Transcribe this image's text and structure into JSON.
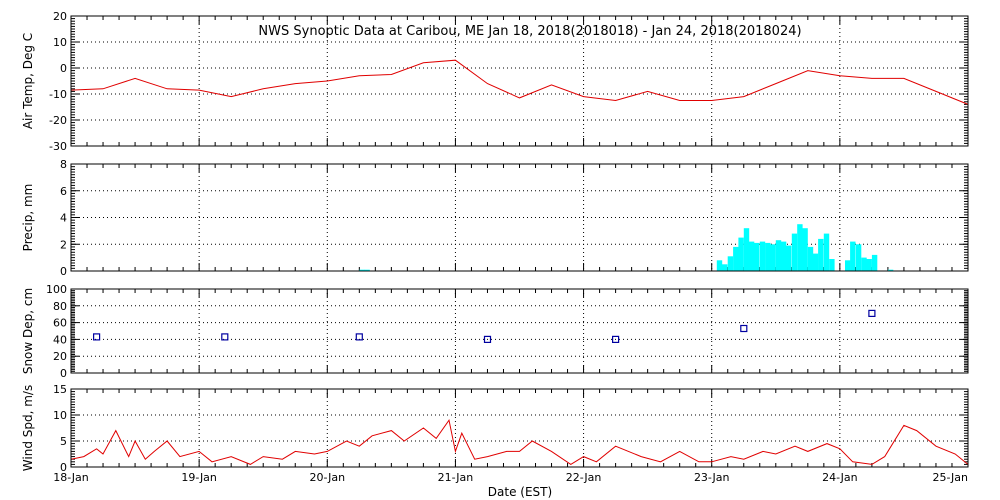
{
  "title": "NWS Synoptic Data at Caribou, ME   Jan 18, 2018(2018018) - Jan 24, 2018(2018024)",
  "xlabel": "Date (EST)",
  "x_tick_labels": [
    "18-Jan",
    "19-Jan",
    "20-Jan",
    "21-Jan",
    "22-Jan",
    "23-Jan",
    "24-Jan",
    "25-Jan"
  ],
  "chart_data": [
    {
      "name": "air-temp",
      "type": "line",
      "ylabel": "Air Temp, Deg C",
      "ylim": [
        -30,
        20
      ],
      "yticks": [
        -30,
        -20,
        -10,
        0,
        10,
        20
      ],
      "xlim": [
        0,
        7
      ],
      "grid": true,
      "color": "#e00000",
      "x": [
        0,
        0.25,
        0.5,
        0.75,
        1.0,
        1.25,
        1.5,
        1.75,
        2.0,
        2.25,
        2.5,
        2.75,
        3.0,
        3.25,
        3.5,
        3.75,
        4.0,
        4.25,
        4.5,
        4.75,
        5.0,
        5.25,
        5.5,
        5.75,
        6.0,
        6.25,
        6.5,
        6.75,
        7.0
      ],
      "y": [
        -8.5,
        -8,
        -4,
        -8,
        -8.5,
        -11,
        -8,
        -6,
        -5,
        -3,
        -2.5,
        2,
        3,
        -6,
        -11.5,
        -6.5,
        -11,
        -12.5,
        -9,
        -12.5,
        -12.5,
        -11,
        -6,
        -1,
        -3,
        -4,
        -4,
        -9,
        -14
      ]
    },
    {
      "name": "precip",
      "type": "bar",
      "ylabel": "Precip, mm",
      "ylim": [
        0,
        8
      ],
      "yticks": [
        0,
        2,
        4,
        6,
        8
      ],
      "xlim": [
        0,
        7
      ],
      "bin_width": 0.042,
      "grid": true,
      "color": "#00ffff",
      "x": [
        2.25,
        2.29,
        5.04,
        5.08,
        5.125,
        5.167,
        5.208,
        5.25,
        5.29,
        5.33,
        5.375,
        5.417,
        5.458,
        5.5,
        5.54,
        5.58,
        5.625,
        5.667,
        5.708,
        5.75,
        5.79,
        5.83,
        5.875,
        5.917,
        6.04,
        6.08,
        6.125,
        6.167,
        6.208,
        6.25,
        6.375
      ],
      "values": [
        0.1,
        0.1,
        0.8,
        0.5,
        1.1,
        1.8,
        2.5,
        3.2,
        2.2,
        2.1,
        2.2,
        2.1,
        2.0,
        2.3,
        2.2,
        1.9,
        2.8,
        3.5,
        3.2,
        1.8,
        1.3,
        2.4,
        2.8,
        0.9,
        0.8,
        2.2,
        2.0,
        1.0,
        0.9,
        1.2,
        0.1
      ]
    },
    {
      "name": "snow-depth",
      "type": "scatter",
      "ylabel": "Snow Dep, cm",
      "ylim": [
        0,
        100
      ],
      "yticks": [
        0,
        20,
        40,
        60,
        80,
        100
      ],
      "xlim": [
        0,
        7
      ],
      "grid": true,
      "color": "#0000a0",
      "x": [
        0.2,
        1.2,
        2.25,
        3.25,
        4.25,
        5.25,
        6.25
      ],
      "y": [
        43,
        43,
        43,
        40,
        40,
        53,
        71
      ]
    },
    {
      "name": "wind-speed",
      "type": "line",
      "ylabel": "Wind Spd, m/s",
      "ylim": [
        0,
        15
      ],
      "yticks": [
        0,
        5,
        10,
        15
      ],
      "xlim": [
        0,
        7
      ],
      "grid": true,
      "color": "#e00000",
      "x": [
        0,
        0.1,
        0.2,
        0.25,
        0.35,
        0.45,
        0.5,
        0.58,
        0.65,
        0.75,
        0.85,
        1.0,
        1.1,
        1.25,
        1.4,
        1.5,
        1.65,
        1.75,
        1.9,
        2.0,
        2.15,
        2.25,
        2.35,
        2.5,
        2.6,
        2.75,
        2.85,
        2.95,
        3.0,
        3.05,
        3.15,
        3.25,
        3.4,
        3.5,
        3.6,
        3.75,
        3.9,
        4.0,
        4.1,
        4.25,
        4.45,
        4.6,
        4.75,
        4.9,
        5.0,
        5.15,
        5.25,
        5.4,
        5.5,
        5.65,
        5.75,
        5.9,
        6.0,
        6.1,
        6.25,
        6.35,
        6.5,
        6.6,
        6.75,
        6.9,
        7.0
      ],
      "y": [
        1.5,
        2.0,
        3.5,
        2.5,
        7.0,
        2.0,
        5.0,
        1.5,
        3.0,
        5.0,
        2.0,
        3.0,
        1.0,
        2.0,
        0.5,
        2.0,
        1.5,
        3.0,
        2.5,
        3.0,
        5.0,
        4.0,
        6.0,
        7.0,
        5.0,
        7.5,
        5.5,
        9.0,
        3.0,
        6.5,
        1.5,
        2.0,
        3.0,
        3.0,
        5.0,
        3.0,
        0.5,
        2.0,
        1.0,
        4.0,
        2.0,
        1.0,
        3.0,
        1.0,
        1.0,
        2.0,
        1.5,
        3.0,
        2.5,
        4.0,
        3.0,
        4.5,
        3.5,
        1.0,
        0.5,
        2.0,
        8.0,
        7.0,
        4.0,
        2.5,
        0.5
      ]
    }
  ]
}
